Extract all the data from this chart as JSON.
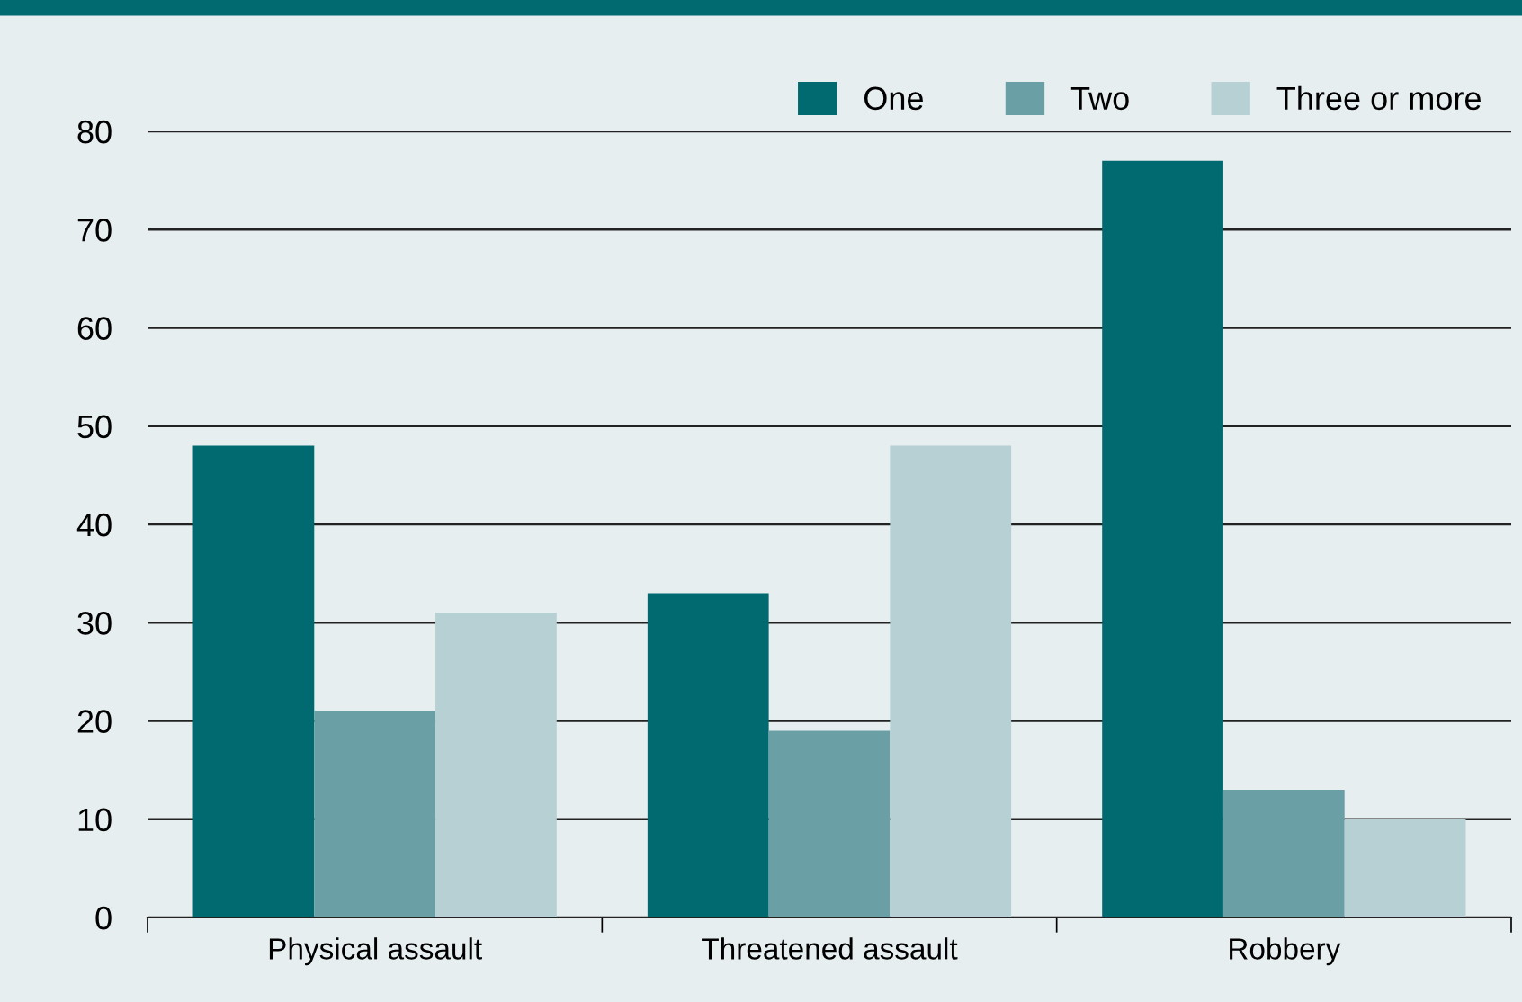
{
  "chart_data": {
    "type": "bar",
    "categories": [
      "Physical assault",
      "Threatened assault",
      "Robbery"
    ],
    "series": [
      {
        "name": "One",
        "color": "#006a70",
        "values": [
          48,
          33,
          77
        ]
      },
      {
        "name": "Two",
        "color": "#6a9fa6",
        "values": [
          21,
          19,
          13
        ]
      },
      {
        "name": "Three or more",
        "color": "#b6d0d4",
        "values": [
          31,
          48,
          10
        ]
      }
    ],
    "ylim": [
      0,
      80
    ],
    "yticks": [
      0,
      10,
      20,
      30,
      40,
      50,
      60,
      70,
      80
    ],
    "grid": "y",
    "legend": "top right"
  }
}
